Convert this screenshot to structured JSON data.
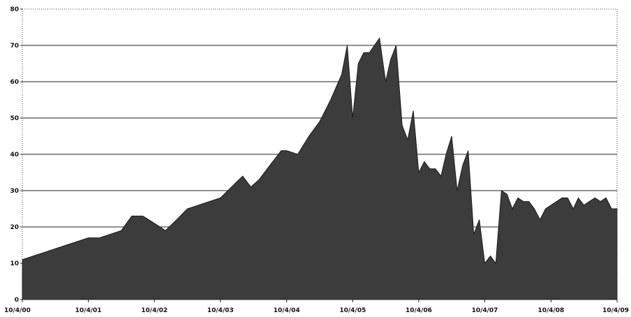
{
  "chart_data": {
    "type": "area",
    "title": "",
    "xlabel": "",
    "ylabel": "",
    "xlim": [
      "10/4/00",
      "10/4/09"
    ],
    "ylim": [
      0,
      80
    ],
    "y_ticks": [
      0,
      10,
      20,
      30,
      40,
      50,
      60,
      70,
      80
    ],
    "y_tick_labels": [
      "0",
      "10",
      "20",
      "30",
      "40",
      "50",
      "60",
      "70",
      "80"
    ],
    "x_tick_labels": [
      "10/4/00",
      "10/4/01",
      "10/4/02",
      "10/4/03",
      "10/4/04",
      "10/4/05",
      "10/4/06",
      "10/4/07",
      "10/4/08",
      "10/4/09"
    ],
    "grid": true,
    "legend": "none",
    "fill_color": "#3c3c3c",
    "series": [
      {
        "x": [
          "10/4/00",
          "12/4/00",
          "2/4/01",
          "4/4/01",
          "6/4/01",
          "8/4/01",
          "10/4/01",
          "12/4/01",
          "2/4/02",
          "4/4/02",
          "6/1/02",
          "8/1/02",
          "10/4/02",
          "12/4/02",
          "2/4/03",
          "4/4/03",
          "6/4/03",
          "8/4/03",
          "10/4/03",
          "12/4/03",
          "2/4/04",
          "3/20/04",
          "5/4/04",
          "7/4/04",
          "9/4/04",
          "10/4/04",
          "12/4/04",
          "2/4/05",
          "4/4/05",
          "6/4/05",
          "8/4/05",
          "9/4/05",
          "10/4/05",
          "11/4/05",
          "12/4/05",
          "1/4/06",
          "2/1/06",
          "3/1/06",
          "4/4/06",
          "5/1/06",
          "6/1/06",
          "7/4/06",
          "8/4/06",
          "9/4/06",
          "10/4/06",
          "11/4/06",
          "12/4/06",
          "1/4/07",
          "2/4/07",
          "3/4/07",
          "4/4/07",
          "5/4/07",
          "6/4/07",
          "7/4/07",
          "8/4/07",
          "9/4/07",
          "10/4/07",
          "11/4/07",
          "12/4/07",
          "1/4/08",
          "2/4/08",
          "3/4/08",
          "4/4/08",
          "5/4/08",
          "6/4/08",
          "7/4/08",
          "8/4/08",
          "9/4/08",
          "10/4/08",
          "11/4/08",
          "12/4/08",
          "1/4/09",
          "2/4/09",
          "3/4/09",
          "4/4/09",
          "5/4/09",
          "6/4/09",
          "7/4/09",
          "8/4/09",
          "9/4/09",
          "10/4/09"
        ],
        "values": [
          11,
          12,
          13,
          14,
          15,
          16,
          17,
          17,
          18,
          19,
          23,
          23,
          21,
          19,
          22,
          25,
          26,
          27,
          28,
          31,
          34,
          31,
          33,
          37,
          41,
          41,
          40,
          45,
          49,
          55,
          62,
          70,
          50,
          65,
          68,
          68,
          70,
          72,
          60,
          66,
          70,
          48,
          44,
          52,
          35,
          38,
          36,
          36,
          34,
          40,
          45,
          30,
          37,
          41,
          18,
          22,
          10,
          12,
          10,
          30,
          29,
          25,
          28,
          27,
          27,
          25,
          22,
          25,
          26,
          27,
          28,
          28,
          25,
          28,
          26,
          27,
          28,
          27,
          28,
          25,
          25
        ]
      }
    ]
  }
}
